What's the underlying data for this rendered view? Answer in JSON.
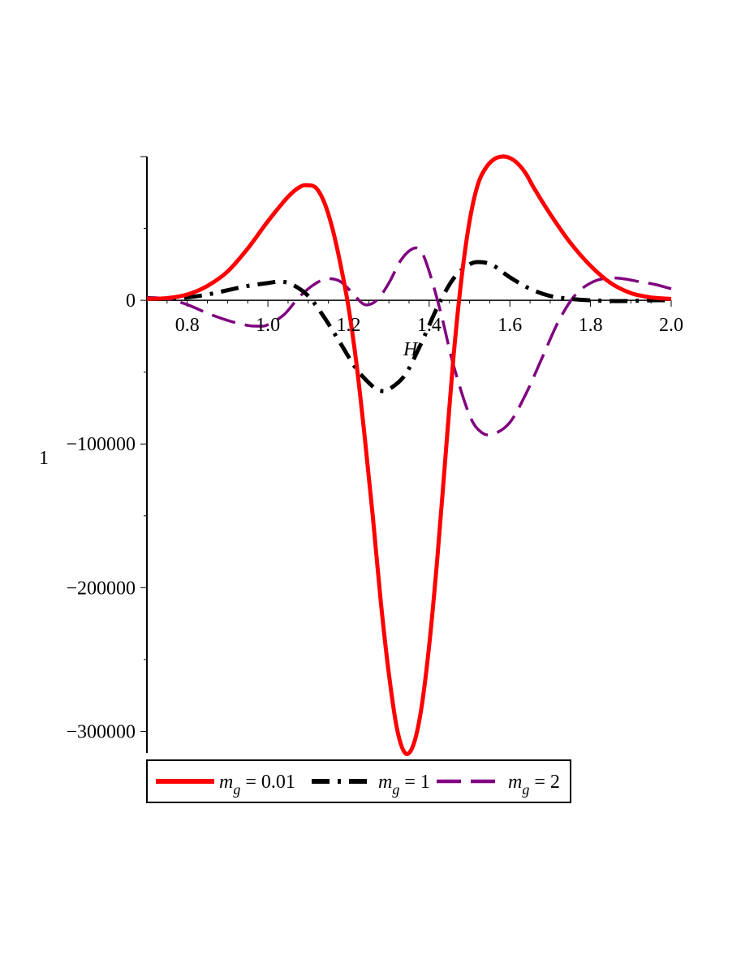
{
  "chart_data": {
    "type": "line",
    "title": "",
    "xlabel": "H",
    "ylabel": "1",
    "xlim": [
      0.7,
      2.0
    ],
    "ylim": [
      -315000,
      100000
    ],
    "x_ticks": [
      0.8,
      1.0,
      1.2,
      1.4,
      1.6,
      1.8,
      2.0
    ],
    "x_tick_labels": [
      "0.8",
      "1.0",
      "1.2",
      "1.4",
      "1.6",
      "1.8",
      "2.0"
    ],
    "y_ticks": [
      0,
      -100000,
      -200000,
      -300000
    ],
    "y_tick_labels": [
      "0",
      "-100000",
      "-200000",
      "-300000"
    ],
    "grid": false,
    "legend_position": "bottom",
    "series": [
      {
        "name": "m_g = 0.01",
        "legend_symbol": "m",
        "legend_subscript": "g",
        "legend_value": " = 0.01",
        "color": "#ff0000",
        "style": "solid",
        "x": [
          0.7,
          0.75,
          0.8,
          0.85,
          0.9,
          0.95,
          1.0,
          1.05,
          1.08,
          1.1,
          1.12,
          1.14,
          1.16,
          1.18,
          1.2,
          1.22,
          1.24,
          1.26,
          1.28,
          1.3,
          1.32,
          1.34,
          1.36,
          1.38,
          1.4,
          1.42,
          1.44,
          1.46,
          1.48,
          1.5,
          1.52,
          1.54,
          1.56,
          1.58,
          1.6,
          1.62,
          1.64,
          1.66,
          1.7,
          1.75,
          1.8,
          1.85,
          1.9,
          1.95,
          2.0
        ],
        "y": [
          1000,
          1500,
          4000,
          10000,
          20000,
          36000,
          55000,
          72000,
          79000,
          80000,
          78000,
          68000,
          50000,
          25000,
          -5000,
          -45000,
          -95000,
          -150000,
          -210000,
          -260000,
          -298000,
          -315000,
          -310000,
          -285000,
          -240000,
          -180000,
          -110000,
          -40000,
          15000,
          55000,
          80000,
          92000,
          98000,
          100000,
          99000,
          95000,
          88000,
          78000,
          60000,
          40000,
          24000,
          12000,
          5000,
          2000,
          1000
        ]
      },
      {
        "name": "m_g = 1",
        "legend_symbol": "m",
        "legend_subscript": "g",
        "legend_value": " = 1",
        "color": "#000000",
        "style": "dashdot",
        "x": [
          0.7,
          0.75,
          0.8,
          0.85,
          0.9,
          0.95,
          1.0,
          1.03,
          1.06,
          1.1,
          1.14,
          1.18,
          1.22,
          1.26,
          1.28,
          1.3,
          1.34,
          1.38,
          1.42,
          1.46,
          1.5,
          1.53,
          1.56,
          1.6,
          1.65,
          1.7,
          1.75,
          1.8,
          1.85,
          1.9,
          1.95,
          2.0
        ],
        "y": [
          1000,
          1000,
          2000,
          4000,
          7000,
          10000,
          12000,
          13000,
          11000,
          3000,
          -12000,
          -30000,
          -48000,
          -60000,
          -63000,
          -62000,
          -52000,
          -30000,
          -5000,
          15000,
          25000,
          26500,
          24000,
          16000,
          8000,
          3000,
          1000,
          0,
          -500,
          -500,
          0,
          0
        ]
      },
      {
        "name": "m_g = 2",
        "legend_symbol": "m",
        "legend_subscript": "g",
        "legend_value": " = 2",
        "color": "#800080",
        "style": "dashed",
        "x": [
          0.7,
          0.75,
          0.8,
          0.85,
          0.9,
          0.95,
          0.98,
          1.0,
          1.04,
          1.08,
          1.12,
          1.15,
          1.18,
          1.21,
          1.24,
          1.27,
          1.3,
          1.33,
          1.36,
          1.38,
          1.4,
          1.43,
          1.46,
          1.5,
          1.53,
          1.56,
          1.6,
          1.64,
          1.68,
          1.72,
          1.76,
          1.8,
          1.84,
          1.88,
          1.92,
          1.96,
          2.0
        ],
        "y": [
          2000,
          1000,
          -3000,
          -9000,
          -14000,
          -17500,
          -18000,
          -17000,
          -10000,
          3000,
          12000,
          15000,
          13000,
          5000,
          -3000,
          0,
          12000,
          28000,
          36000,
          34000,
          20000,
          -10000,
          -45000,
          -80000,
          -92000,
          -93000,
          -85000,
          -65000,
          -40000,
          -15000,
          3000,
          12000,
          15500,
          15000,
          13000,
          11000,
          8000
        ]
      }
    ]
  }
}
